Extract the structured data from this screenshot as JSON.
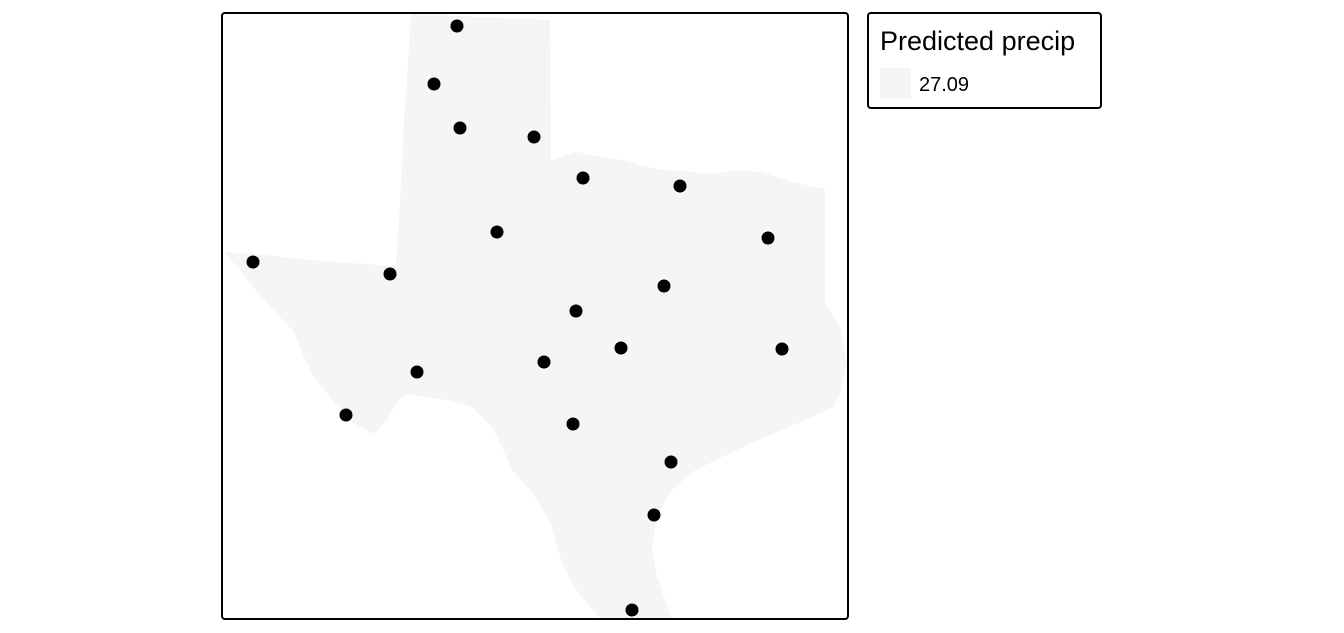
{
  "map": {
    "region_fill": "#f5f5f5",
    "point_color": "#000000",
    "frame_color": "#000000"
  },
  "legend": {
    "title": "Predicted precip",
    "items": [
      {
        "label": "27.09",
        "color": "#f5f5f5"
      }
    ]
  }
}
